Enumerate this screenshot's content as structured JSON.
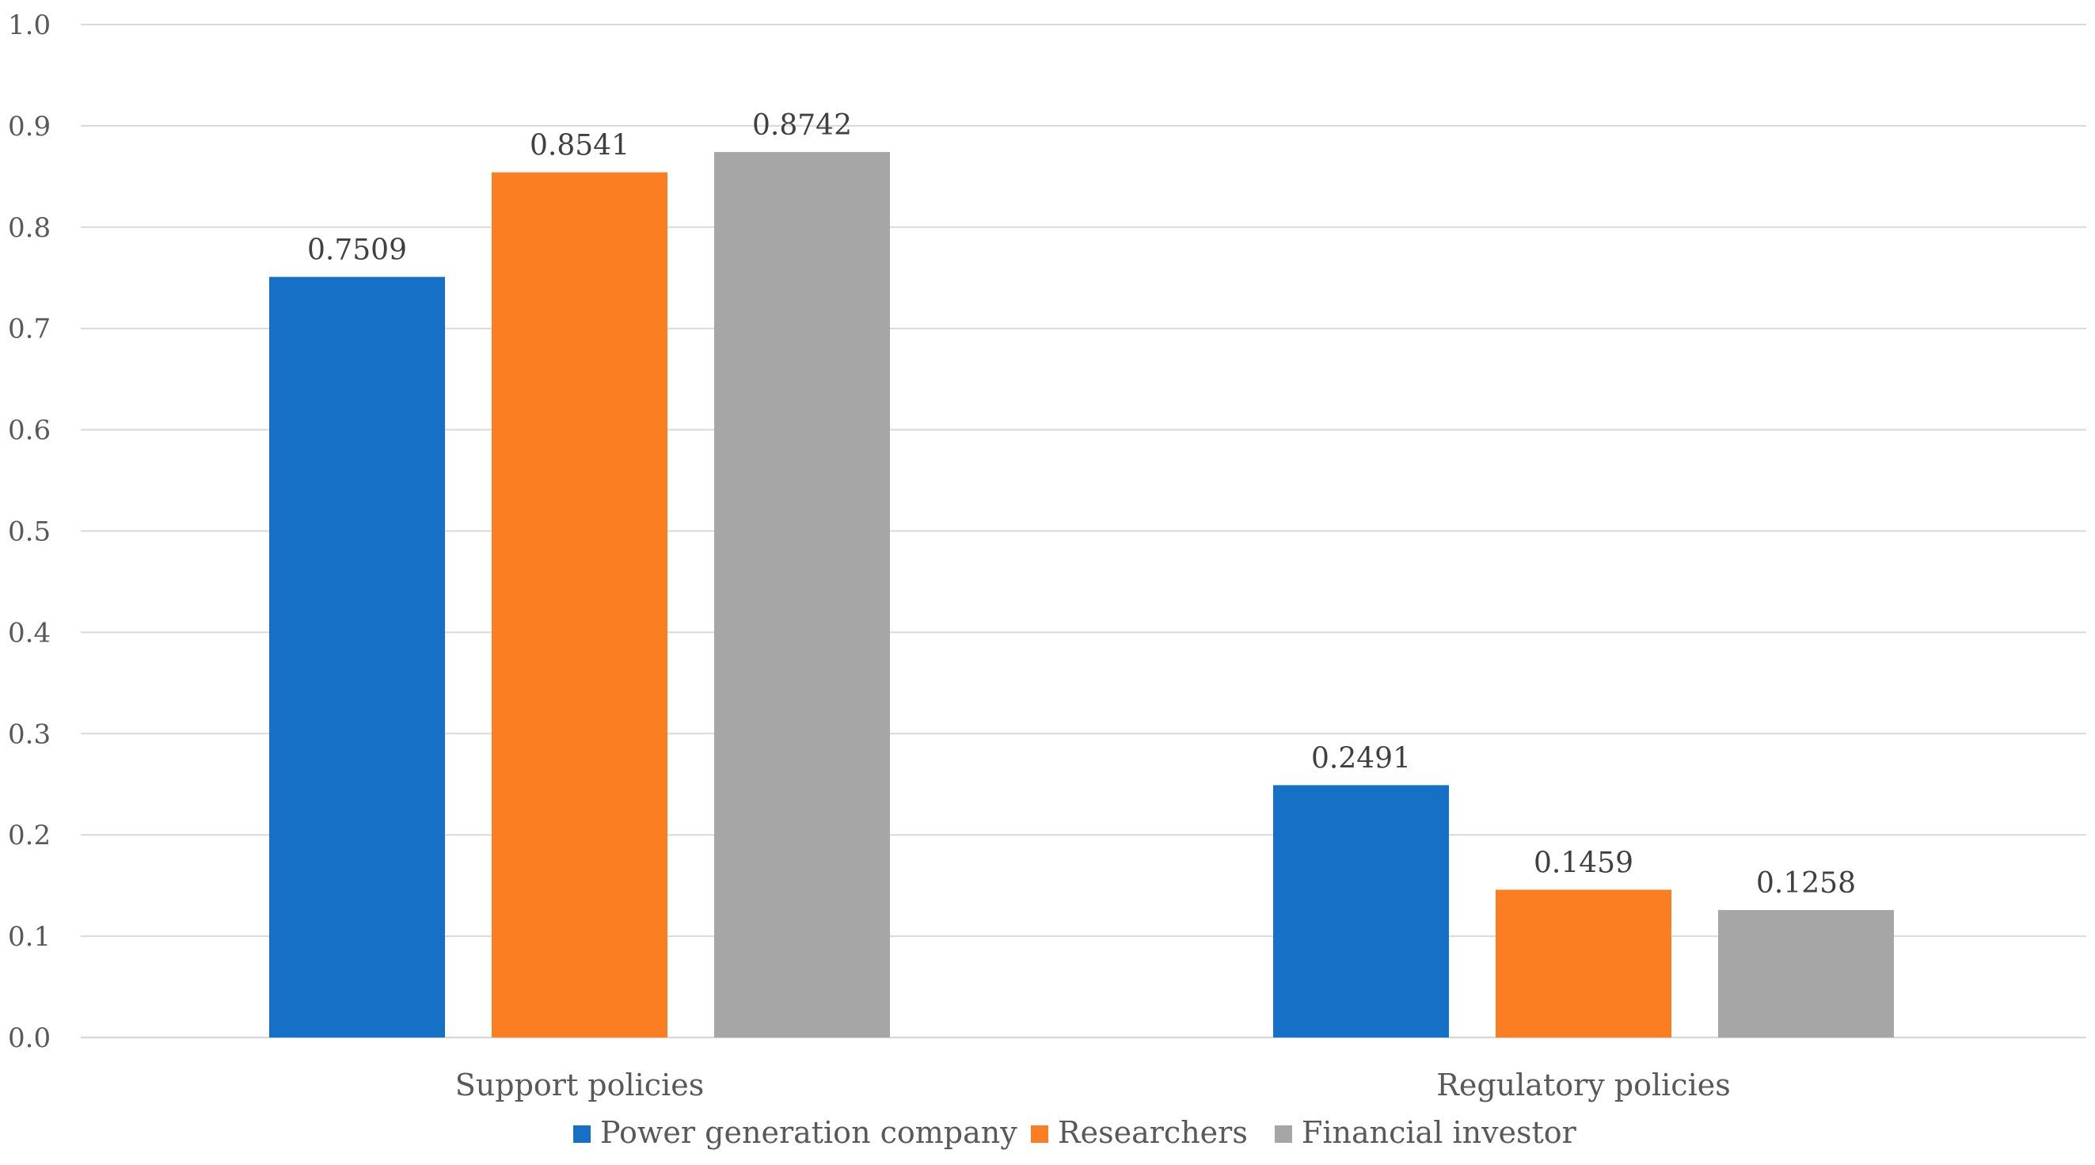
{
  "chart_data": {
    "type": "bar",
    "title": "",
    "xlabel": "",
    "ylabel": "",
    "ylim": [
      0,
      1.0
    ],
    "yticks": [
      "0.0",
      "0.1",
      "0.2",
      "0.3",
      "0.4",
      "0.5",
      "0.6",
      "0.7",
      "0.8",
      "0.9",
      "1.0"
    ],
    "categories": [
      "Support policies",
      "Regulatory policies"
    ],
    "series": [
      {
        "name": "Power generation company",
        "color": "#1570c6",
        "values": [
          0.7509,
          0.2491
        ],
        "labels": [
          "0.7509",
          "0.2491"
        ]
      },
      {
        "name": "Researchers",
        "color": "#fb7e23",
        "values": [
          0.8541,
          0.1459
        ],
        "labels": [
          "0.8541",
          "0.1459"
        ]
      },
      {
        "name": "Financial investor",
        "color": "#a6a6a6",
        "values": [
          0.8742,
          0.1258
        ],
        "labels": [
          "0.8742",
          "0.1258"
        ]
      }
    ],
    "grid": true,
    "legend_position": "bottom-center"
  }
}
